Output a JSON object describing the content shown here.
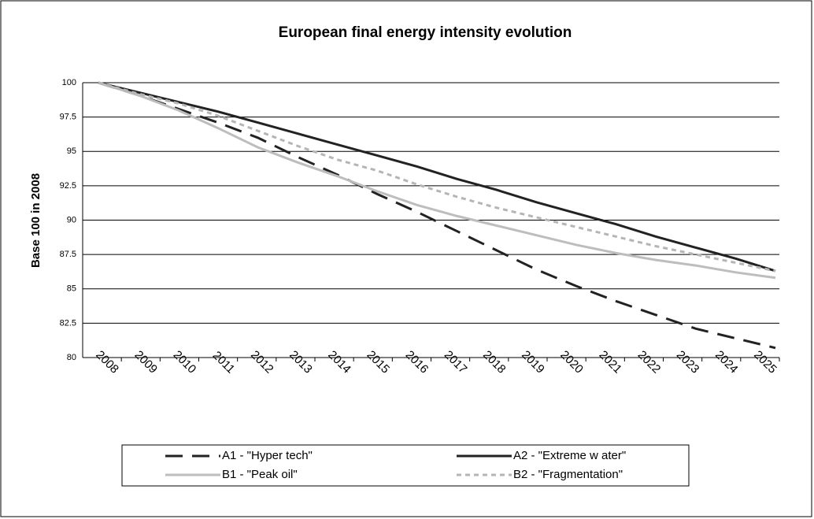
{
  "chart_data": {
    "type": "line",
    "title": "European final energy intensity evolution",
    "y_label": "Base 100 in 2008",
    "categories": [
      "2008",
      "2009",
      "2010",
      "2011",
      "2012",
      "2013",
      "2014",
      "2015",
      "2016",
      "2017",
      "2018",
      "2019",
      "2020",
      "2021",
      "2022",
      "2023",
      "2024",
      "2025"
    ],
    "series": [
      {
        "name": "A1 - \"Hyper tech\"",
        "color": "#222222",
        "dash": "dashed",
        "values": [
          100,
          99.1,
          98.1,
          97.1,
          96.0,
          94.6,
          93.3,
          91.9,
          90.6,
          89.2,
          87.8,
          86.4,
          85.2,
          84.1,
          83.1,
          82.1,
          81.4,
          80.7
        ]
      },
      {
        "name": "A2 - \"Extreme w ater\"",
        "color": "#222222",
        "dash": "solid",
        "values": [
          100,
          99.3,
          98.6,
          97.9,
          97.1,
          96.3,
          95.5,
          94.7,
          93.9,
          93.0,
          92.2,
          91.3,
          90.5,
          89.7,
          88.8,
          88.0,
          87.2,
          86.3
        ]
      },
      {
        "name": "B1 - \"Peak oil\"",
        "color": "#bdbdbd",
        "dash": "solid",
        "values": [
          100,
          99.1,
          98.0,
          96.7,
          95.3,
          94.2,
          93.2,
          92.1,
          91.1,
          90.3,
          89.6,
          88.9,
          88.2,
          87.6,
          87.1,
          86.7,
          86.2,
          85.8
        ]
      },
      {
        "name": "B2 - \"Fragmentation\"",
        "color": "#b5b5b5",
        "dash": "dotted",
        "values": [
          100,
          99.2,
          98.5,
          97.6,
          96.5,
          95.4,
          94.4,
          93.6,
          92.6,
          91.7,
          90.9,
          90.2,
          89.5,
          88.8,
          88.1,
          87.5,
          86.9,
          86.3
        ]
      }
    ],
    "ylim": [
      80,
      100
    ],
    "yticks": [
      80,
      82.5,
      85,
      87.5,
      90,
      92.5,
      95,
      97.5,
      100
    ],
    "grid": true,
    "legend": "bottom"
  }
}
